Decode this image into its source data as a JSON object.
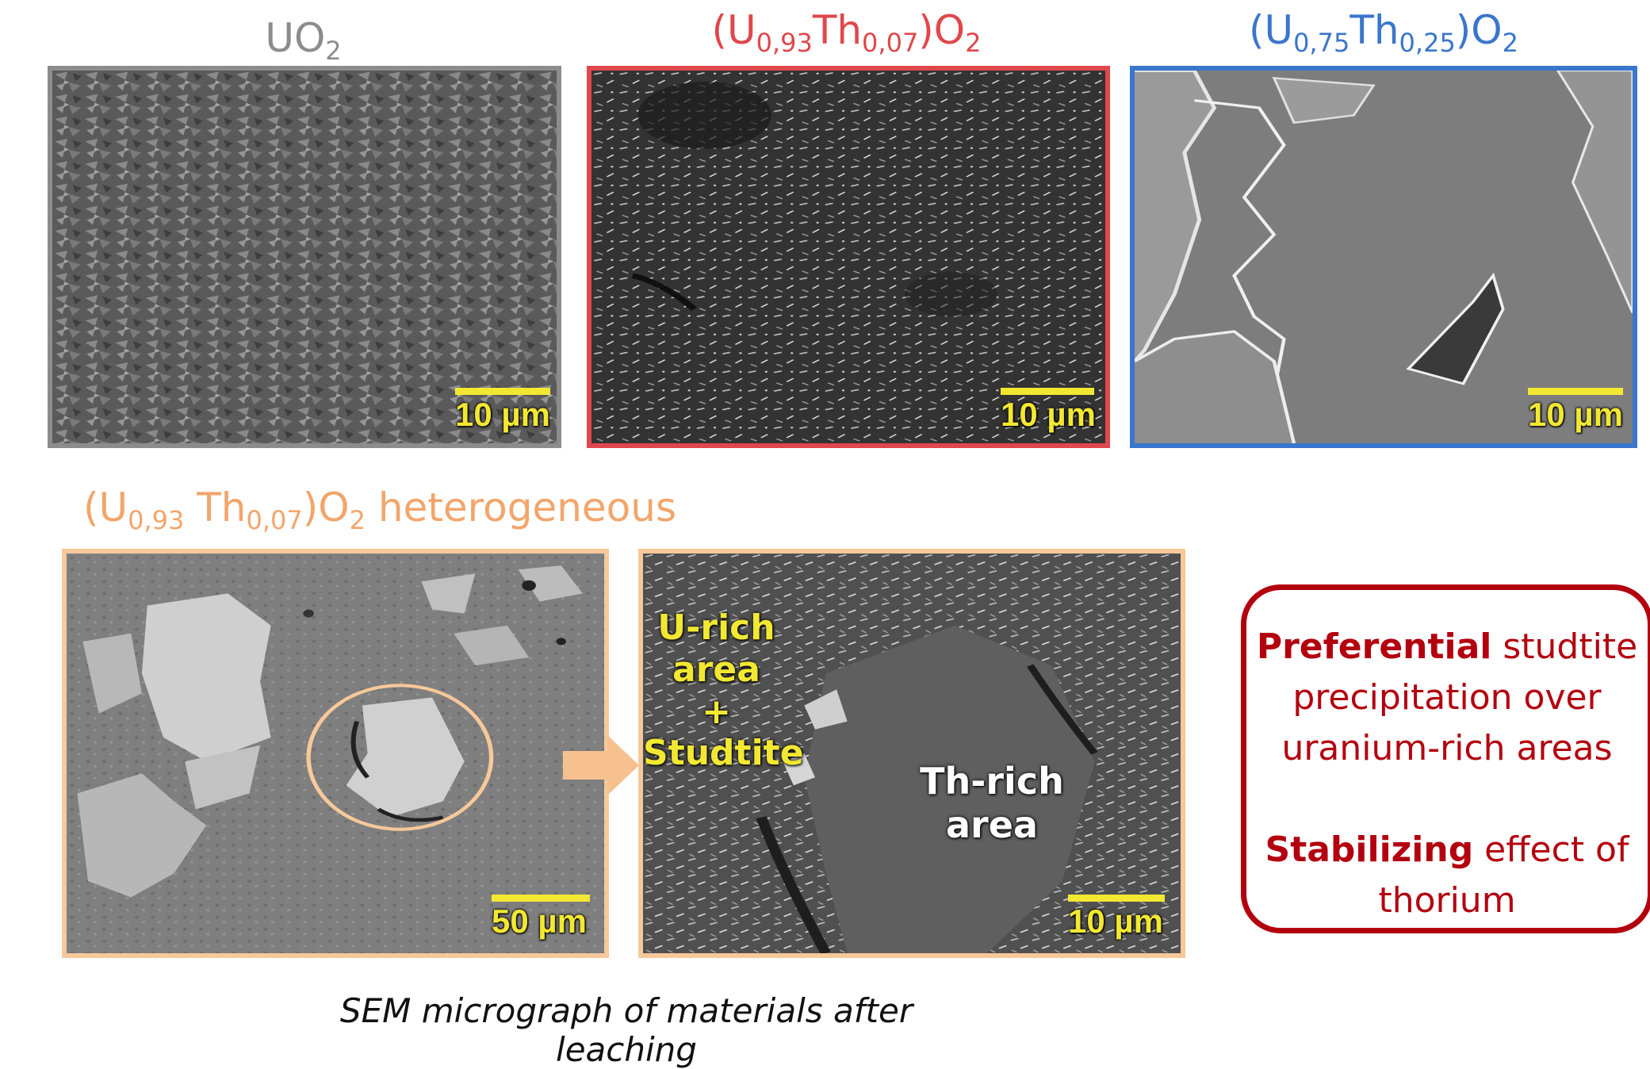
{
  "panels_top": [
    {
      "title_main": "UO",
      "title_sub": "2",
      "color": "#8c8c8c",
      "scale": "10 µm"
    },
    {
      "title_parts": [
        "(U",
        "0,93",
        "Th",
        "0,07",
        ")O",
        "2"
      ],
      "color": "#e0474c",
      "scale": "10 µm"
    },
    {
      "title_parts": [
        "(U",
        "0,75",
        "Th",
        "0,25",
        ")O",
        "2"
      ],
      "color": "#3a76cc",
      "scale": "10 µm"
    }
  ],
  "heterogeneous": {
    "title_parts": [
      "(U",
      "0,93",
      " Th",
      "0,07",
      ")O",
      "2",
      " heterogeneous"
    ],
    "color": "#f2a56b",
    "left_scale": "50 µm",
    "right_scale": "10 µm",
    "urich_lines": [
      "U-rich",
      "area",
      "+",
      "Studtite"
    ],
    "thrich_lines": [
      "Th-rich",
      "area"
    ]
  },
  "callout": {
    "line1_bold": "Preferential",
    "line1_rest": " studtite",
    "line2": "precipitation over",
    "line3": "uranium-rich areas",
    "line4_bold": "Stabilizing",
    "line4_rest": " effect of",
    "line5": "thorium",
    "color": "#b3000f"
  },
  "caption": "SEM micrograph of materials after leaching"
}
